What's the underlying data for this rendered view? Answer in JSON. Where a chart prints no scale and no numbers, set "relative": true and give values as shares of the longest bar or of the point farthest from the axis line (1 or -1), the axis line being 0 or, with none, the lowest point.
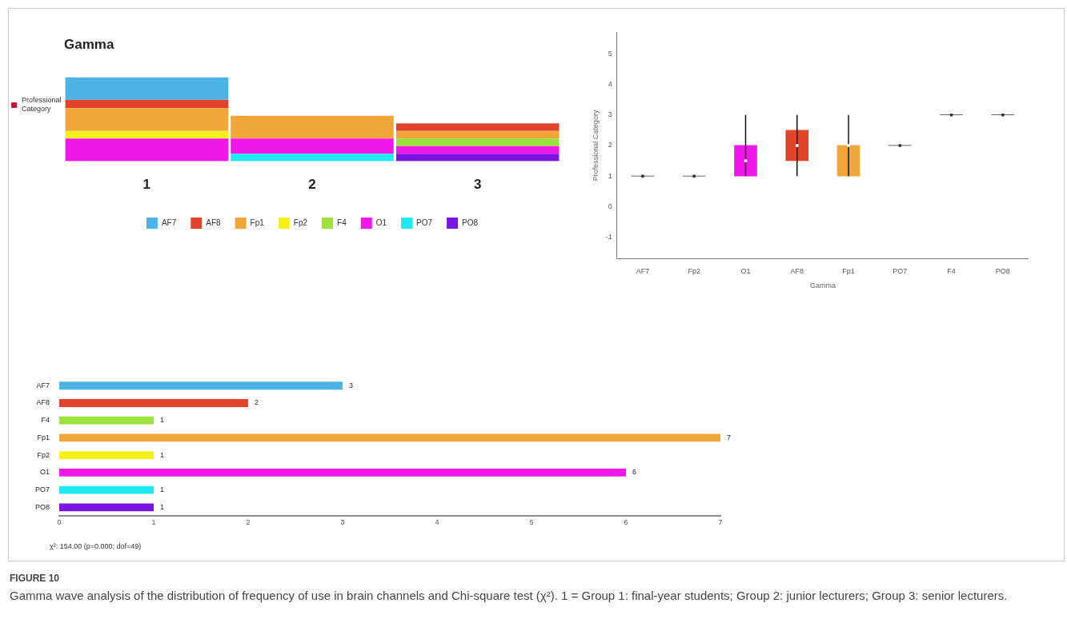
{
  "chart_data": [
    {
      "type": "bar",
      "title": "Gamma",
      "stacked": true,
      "relative": true,
      "categories": [
        "1",
        "2",
        "3"
      ],
      "legend": "bottom",
      "annotations": [
        "Professional Category"
      ],
      "series": [
        {
          "name": "PO8",
          "color": "#7a14e0",
          "values": [
            null,
            null,
            0.09
          ]
        },
        {
          "name": "PO7",
          "color": "#1ee8f0",
          "values": [
            null,
            0.09,
            null
          ]
        },
        {
          "name": "O1",
          "color": "#f018e8",
          "values": [
            0.27,
            0.18,
            0.09
          ]
        },
        {
          "name": "F4",
          "color": "#9be23c",
          "values": [
            null,
            null,
            0.09
          ]
        },
        {
          "name": "Fp2",
          "color": "#f5f01a",
          "values": [
            0.09,
            null,
            null
          ]
        },
        {
          "name": "Fp1",
          "color": "#f0a638",
          "values": [
            0.27,
            0.27,
            0.09
          ]
        },
        {
          "name": "AF8",
          "color": "#e0442c",
          "values": [
            0.1,
            null,
            0.09
          ]
        },
        {
          "name": "AF7",
          "color": "#4db3e6",
          "values": [
            0.27,
            null,
            null
          ]
        }
      ]
    },
    {
      "type": "box",
      "xlabel": "Gamma",
      "ylabel": "Professional Category",
      "categories": [
        "AF7",
        "Fp2",
        "O1",
        "AF8",
        "Fp1",
        "PO7",
        "F4",
        "PO8"
      ],
      "ylim": [
        -1.7,
        5.7
      ],
      "yticks": [
        -1,
        0,
        1,
        2,
        3,
        4,
        5
      ],
      "colors": [
        "#333333",
        "#333333",
        "#f018e8",
        "#e0442c",
        "#f0a638",
        "#333333",
        "#333333",
        "#333333"
      ],
      "boxes": [
        {
          "low": 1,
          "q1": 1,
          "median": 1,
          "q3": 1,
          "high": 1
        },
        {
          "low": 1,
          "q1": 1,
          "median": 1,
          "q3": 1,
          "high": 1
        },
        {
          "low": 1,
          "q1": 1,
          "median": 1.5,
          "q3": 2,
          "high": 3
        },
        {
          "low": 1,
          "q1": 1.5,
          "median": 2,
          "q3": 2.5,
          "high": 3
        },
        {
          "low": 1,
          "q1": 1,
          "median": 2,
          "q3": 2,
          "high": 3
        },
        {
          "low": 2,
          "q1": 2,
          "median": 2,
          "q3": 2,
          "high": 2
        },
        {
          "low": 3,
          "q1": 3,
          "median": 3,
          "q3": 3,
          "high": 3
        },
        {
          "low": 3,
          "q1": 3,
          "median": 3,
          "q3": 3,
          "high": 3
        }
      ]
    },
    {
      "type": "bar",
      "orientation": "horizontal",
      "categories": [
        "AF7",
        "AF8",
        "F4",
        "Fp1",
        "Fp2",
        "O1",
        "PO7",
        "PO8"
      ],
      "values": [
        3,
        2,
        1,
        7,
        1,
        6,
        1,
        1
      ],
      "colors": [
        "#4db3e6",
        "#e0442c",
        "#9be23c",
        "#f0a638",
        "#f5f01a",
        "#f018e8",
        "#1ee8f0",
        "#7a14e0"
      ],
      "xlim": [
        0,
        7
      ],
      "xticks": [
        0,
        1,
        2,
        3,
        4,
        5,
        6,
        7
      ],
      "data_labels": true,
      "annotations": [
        "χ²: 154.00 (p=0.000; dof=49)",
        "FIGURE 10",
        "Gamma wave analysis of the distribution of frequency of use in brain channels and Chi-square test (χ²). 1 = Group 1: final-year students; Group 2: junior lecturers; Group 3: senior lecturers."
      ]
    }
  ]
}
